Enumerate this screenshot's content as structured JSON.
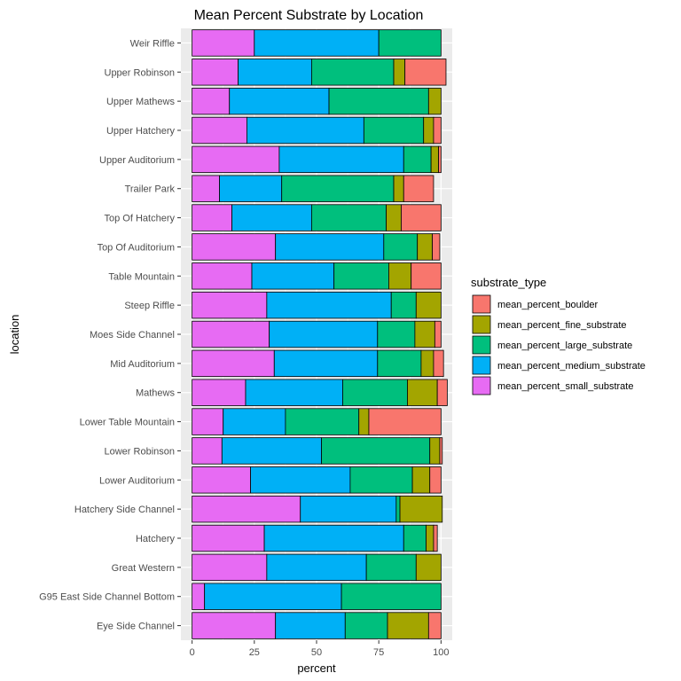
{
  "chart_data": {
    "type": "bar",
    "orientation": "horizontal",
    "stacked": true,
    "title": "Mean Percent Substrate by Location",
    "xlabel": "percent",
    "ylabel": "location",
    "xlim": [
      -4.5,
      104.5
    ],
    "xticks": [
      0,
      25,
      50,
      75,
      100
    ],
    "grid": true,
    "legend_position": "right",
    "categories": [
      "Weir Riffle",
      "Upper Robinson",
      "Upper Mathews",
      "Upper Hatchery",
      "Upper Auditorium",
      "Trailer Park",
      "Top Of Hatchery",
      "Top Of Auditorium",
      "Table Mountain",
      "Steep Riffle",
      "Moes Side Channel",
      "Mid Auditorium",
      "Mathews",
      "Lower Table Mountain",
      "Lower Robinson",
      "Lower Auditorium",
      "Hatchery Side Channel",
      "Hatchery",
      "Great Western",
      "G95 East Side Channel Bottom",
      "Eye Side Channel"
    ],
    "stack_order": [
      "mean_percent_small_substrate",
      "mean_percent_medium_substrate",
      "mean_percent_large_substrate",
      "mean_percent_fine_substrate",
      "mean_percent_boulder"
    ],
    "legend": {
      "title": "substrate_type",
      "entries": [
        "mean_percent_boulder",
        "mean_percent_fine_substrate",
        "mean_percent_large_substrate",
        "mean_percent_medium_substrate",
        "mean_percent_small_substrate"
      ]
    },
    "series": [
      {
        "name": "mean_percent_small_substrate",
        "color": "#E76BF3",
        "values": [
          25,
          18.5,
          15,
          22,
          35,
          11,
          16,
          33.5,
          24,
          30,
          31,
          33,
          21.5,
          12.5,
          12,
          23.5,
          43.5,
          29,
          30,
          5,
          33.5
        ]
      },
      {
        "name": "mean_percent_medium_substrate",
        "color": "#00B0F6",
        "values": [
          50,
          29.5,
          40,
          47,
          50,
          25,
          32,
          43.5,
          33,
          50,
          43.5,
          41.5,
          39,
          25,
          40,
          40,
          38.5,
          56,
          40,
          55,
          28
        ]
      },
      {
        "name": "mean_percent_large_substrate",
        "color": "#00BF7D",
        "values": [
          25,
          33,
          40,
          24,
          11,
          45,
          30,
          13.5,
          22,
          10,
          15,
          17.5,
          26,
          29.5,
          43.5,
          25,
          1.5,
          9,
          20,
          40,
          17
        ]
      },
      {
        "name": "mean_percent_fine_substrate",
        "color": "#A3A500",
        "values": [
          0,
          4.5,
          5,
          4,
          3,
          4,
          6,
          6,
          9,
          10,
          8,
          5,
          12,
          4,
          4,
          7,
          17,
          3,
          10,
          0,
          16.5
        ]
      },
      {
        "name": "mean_percent_boulder",
        "color": "#F8766D",
        "values": [
          0,
          16.5,
          0,
          3,
          1,
          12,
          16,
          3,
          12,
          0,
          2.5,
          4,
          4,
          29,
          1,
          4.5,
          0,
          1.5,
          0,
          0,
          5
        ]
      }
    ]
  }
}
